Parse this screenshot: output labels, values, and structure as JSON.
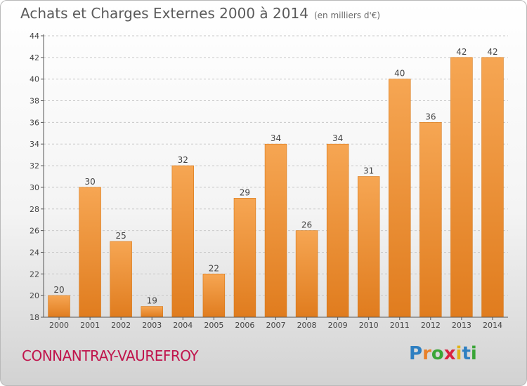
{
  "chart_data": {
    "type": "bar",
    "title": "Achats et Charges Externes 2000 à 2014",
    "subtitle": "(en milliers d'€)",
    "xlabel": "",
    "ylabel": "",
    "categories": [
      "2000",
      "2001",
      "2002",
      "2003",
      "2004",
      "2005",
      "2006",
      "2007",
      "2008",
      "2009",
      "2010",
      "2011",
      "2012",
      "2013",
      "2014"
    ],
    "values": [
      20,
      30,
      25,
      19,
      32,
      22,
      29,
      34,
      26,
      34,
      31,
      40,
      36,
      42,
      42
    ],
    "data_labels": [
      "20",
      "30",
      "25",
      "19",
      "32",
      "22",
      "29",
      "34",
      "26",
      "34",
      "31",
      "40",
      "36",
      "42",
      "42"
    ],
    "ylim": [
      18,
      44
    ],
    "yticks": [
      18,
      20,
      22,
      24,
      26,
      28,
      30,
      32,
      34,
      36,
      38,
      40,
      42,
      44
    ],
    "grid": "horizontal-dashed",
    "legend": "none",
    "bar_color": "#f29a3b"
  },
  "footer": {
    "commune": "CONNANTRAY-VAUREFROY",
    "logo_letters": [
      "P",
      "r",
      "o",
      "x",
      "i",
      "t",
      "i"
    ],
    "logo_colors": [
      "#2e7fc1",
      "#e8812a",
      "#3aa537",
      "#d9233f",
      "#e2b317",
      "#2e7fc1",
      "#3aa537"
    ]
  }
}
